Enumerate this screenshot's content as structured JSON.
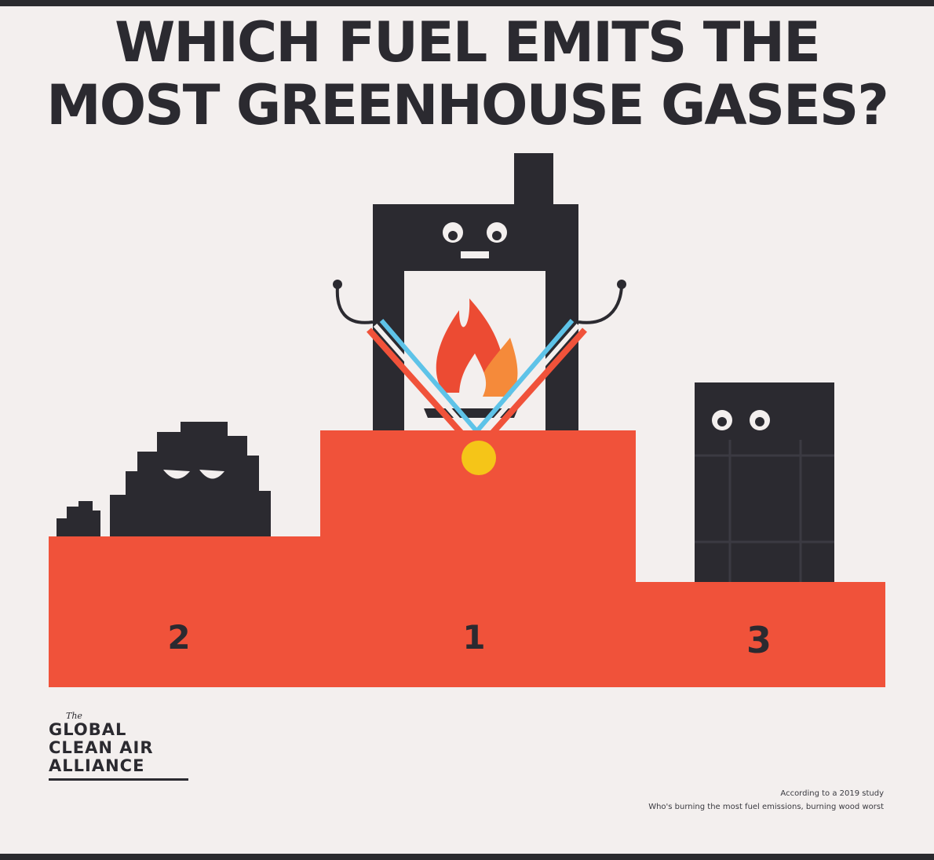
{
  "title": {
    "line1": "WHICH FUEL EMITS THE",
    "line2": "MOST GREENHOUSE GASES?"
  },
  "podium": {
    "first_label": "1",
    "second_label": "2",
    "third_label": "3",
    "first_character": "wood-stove-icon",
    "second_character": "coal-icon",
    "third_character": "oil-tank-icon"
  },
  "logo": {
    "the": "The",
    "line1": "GLOBAL",
    "line2": "CLEAN AIR",
    "line3": "ALLIANCE"
  },
  "source": {
    "line1": "According to a 2019 study",
    "line2": "Who's burning the most fuel emissions, burning wood worst"
  },
  "colors": {
    "podium": "#f0523a",
    "dark": "#2b2a30",
    "background": "#f3efee",
    "medal": "#f5c518",
    "flame_red": "#ec4b33",
    "flame_orange": "#f58a3a"
  }
}
